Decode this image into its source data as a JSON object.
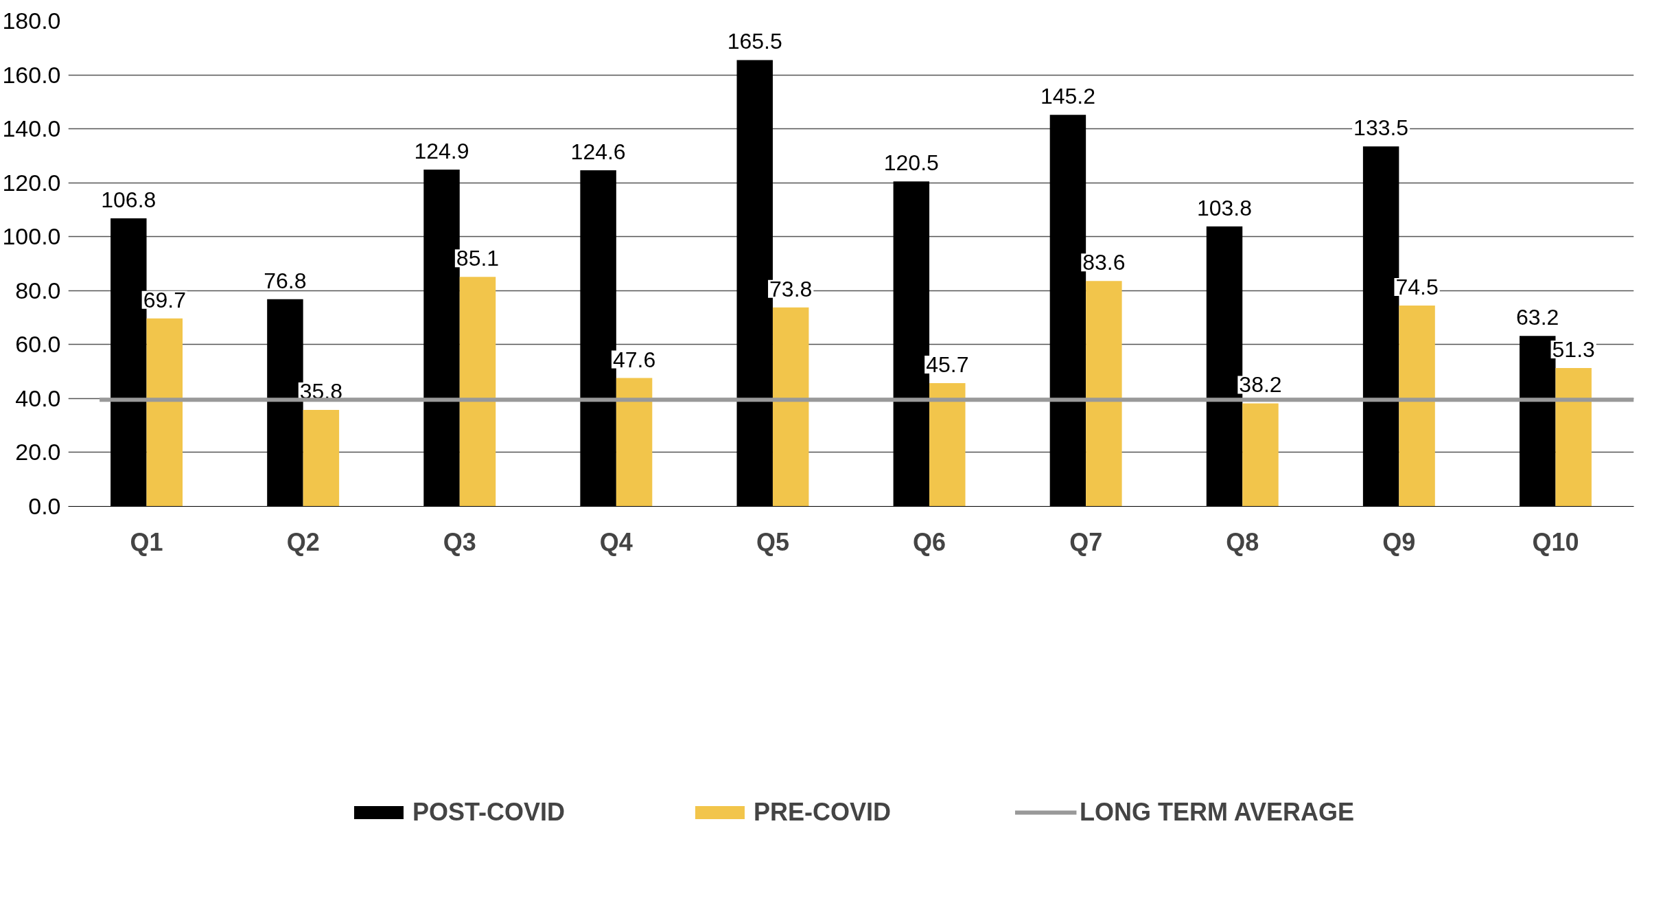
{
  "chart_data": {
    "type": "bar",
    "categories": [
      "Q1",
      "Q2",
      "Q3",
      "Q4",
      "Q5",
      "Q6",
      "Q7",
      "Q8",
      "Q9",
      "Q10"
    ],
    "series": [
      {
        "name": "POST-COVID",
        "color": "#000000",
        "values": [
          106.8,
          76.8,
          124.9,
          124.6,
          165.5,
          120.5,
          145.2,
          103.8,
          133.5,
          63.2
        ]
      },
      {
        "name": "PRE-COVID",
        "color": "#f2c54b",
        "values": [
          69.7,
          35.8,
          85.1,
          47.6,
          73.8,
          45.7,
          83.6,
          38.2,
          74.5,
          51.3
        ]
      }
    ],
    "ylim": [
      0,
      180
    ],
    "yticks": [
      {
        "value": 0,
        "label": "0.0"
      },
      {
        "value": 20,
        "label": "20.0"
      },
      {
        "value": 40,
        "label": "40.0"
      },
      {
        "value": 60,
        "label": "60.0"
      },
      {
        "value": 80,
        "label": "80.0"
      },
      {
        "value": 100,
        "label": "100.0"
      },
      {
        "value": 120,
        "label": "120.0"
      },
      {
        "value": 140,
        "label": "140.0"
      },
      {
        "value": 160,
        "label": "160.0"
      },
      {
        "value": 180,
        "label": "180.0"
      }
    ],
    "ref_lines": [
      {
        "axis": "y",
        "value": 39.5,
        "label": "LONG TERM AVERAGE",
        "color": "#999999"
      }
    ],
    "data_labels": true,
    "grid": "y",
    "legend": "bottom"
  }
}
